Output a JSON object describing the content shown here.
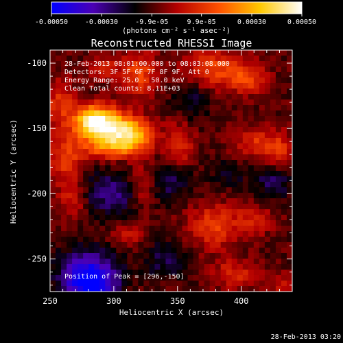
{
  "chart_data": {
    "type": "heatmap",
    "title": "Reconstructed RHESSI Image",
    "xlabel": "Heliocentric X (arcsec)",
    "ylabel": "Heliocentric Y (arcsec)",
    "xlim": [
      250,
      440
    ],
    "ylim": [
      -275,
      -90
    ],
    "x_ticks": [
      250,
      300,
      350,
      400
    ],
    "y_ticks": [
      -100,
      -150,
      -200,
      -250
    ],
    "colorbar": {
      "range": [
        -0.0005,
        0.0005
      ],
      "tick_values": [
        -0.0005,
        -0.0003,
        -9.9e-05,
        9.9e-05,
        0.0003,
        0.0005
      ],
      "tick_labels": [
        "-0.00050",
        "-0.00030",
        "-9.9e-05",
        "9.9e-05",
        "0.00030",
        "0.00050"
      ],
      "unit_label": "(photons cm⁻² s⁻¹ asec⁻²)",
      "colormap": [
        "#0000ff",
        "#4b00b4",
        "#000000",
        "#b40000",
        "#ff5000",
        "#ffc800",
        "#ffffff"
      ]
    },
    "annotations": [
      "28-Feb-2013 08:01:00.000 to 08:03:08.000",
      "Detectors: 3F 5F 6F 7F 8F 9F, Att 0",
      "Energy Range: 25.0 - 50.0 keV",
      "Clean    Total counts: 8.11E+03"
    ],
    "peak_label": "Position of Peak = [296,-150]",
    "peak": [
      296,
      -150
    ],
    "blobs": [
      {
        "x": 296,
        "y": -150,
        "sx": 14,
        "sy": 10,
        "v": 0.0005
      },
      {
        "x": 282,
        "y": -143,
        "sx": 10,
        "sy": 8,
        "v": 0.00035
      },
      {
        "x": 318,
        "y": -155,
        "sx": 10,
        "sy": 8,
        "v": 0.0003
      },
      {
        "x": 300,
        "y": -165,
        "sx": 16,
        "sy": 6,
        "v": 0.00022
      },
      {
        "x": 258,
        "y": -130,
        "sx": 8,
        "sy": 12,
        "v": 0.00018
      },
      {
        "x": 262,
        "y": -172,
        "sx": 10,
        "sy": 14,
        "v": 0.0002
      },
      {
        "x": 268,
        "y": -205,
        "sx": 8,
        "sy": 10,
        "v": 0.00016
      },
      {
        "x": 320,
        "y": -108,
        "sx": 10,
        "sy": 12,
        "v": 0.00022
      },
      {
        "x": 292,
        "y": -104,
        "sx": 8,
        "sy": 6,
        "v": 0.00016
      },
      {
        "x": 322,
        "y": -195,
        "sx": 8,
        "sy": 12,
        "v": 0.00018
      },
      {
        "x": 312,
        "y": -232,
        "sx": 10,
        "sy": 6,
        "v": 0.00012
      },
      {
        "x": 352,
        "y": -162,
        "sx": 8,
        "sy": 14,
        "v": 0.00016
      },
      {
        "x": 378,
        "y": -104,
        "sx": 16,
        "sy": 10,
        "v": 0.00022
      },
      {
        "x": 405,
        "y": -112,
        "sx": 10,
        "sy": 8,
        "v": 0.0002
      },
      {
        "x": 412,
        "y": -162,
        "sx": 12,
        "sy": 8,
        "v": 0.00018
      },
      {
        "x": 430,
        "y": -168,
        "sx": 8,
        "sy": 10,
        "v": 0.00016
      },
      {
        "x": 378,
        "y": -225,
        "sx": 14,
        "sy": 12,
        "v": 0.0002
      },
      {
        "x": 410,
        "y": -220,
        "sx": 10,
        "sy": 8,
        "v": 0.00014
      },
      {
        "x": 395,
        "y": -262,
        "sx": 12,
        "sy": 8,
        "v": 0.00016
      },
      {
        "x": 432,
        "y": -270,
        "sx": 8,
        "sy": 6,
        "v": 0.00012
      },
      {
        "x": 300,
        "y": -200,
        "sx": 18,
        "sy": 12,
        "v": -0.0002
      },
      {
        "x": 280,
        "y": -258,
        "sx": 16,
        "sy": 12,
        "v": -0.00028
      },
      {
        "x": 282,
        "y": -270,
        "sx": 14,
        "sy": 8,
        "v": -0.00032
      },
      {
        "x": 345,
        "y": -190,
        "sx": 12,
        "sy": 10,
        "v": -0.00016
      },
      {
        "x": 360,
        "y": -130,
        "sx": 10,
        "sy": 12,
        "v": -0.00012
      },
      {
        "x": 425,
        "y": -190,
        "sx": 10,
        "sy": 10,
        "v": -0.00016
      },
      {
        "x": 340,
        "y": -250,
        "sx": 12,
        "sy": 10,
        "v": -0.00014
      },
      {
        "x": 390,
        "y": -185,
        "sx": 10,
        "sy": 8,
        "v": -0.0001
      }
    ]
  },
  "timestamp": "28-Feb-2013 03:20"
}
